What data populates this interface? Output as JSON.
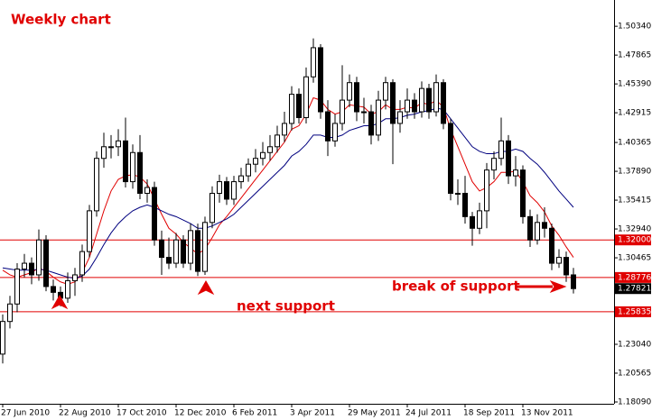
{
  "chart_data": {
    "type": "candlestick",
    "title": "Weekly chart",
    "categories": [
      "27 Jun 2010",
      null,
      null,
      null,
      null,
      null,
      null,
      null,
      "22 Aug 2010",
      null,
      null,
      null,
      null,
      null,
      null,
      null,
      "17 Oct 2010",
      null,
      null,
      null,
      null,
      null,
      null,
      null,
      "12 Dec 2010",
      null,
      null,
      null,
      null,
      null,
      null,
      null,
      "6 Feb 2011",
      null,
      null,
      null,
      null,
      null,
      null,
      null,
      "3 Apr 2011",
      null,
      null,
      null,
      null,
      null,
      null,
      null,
      "29 May 2011",
      null,
      null,
      null,
      null,
      null,
      null,
      null,
      "24 Jul 2011",
      null,
      null,
      null,
      null,
      null,
      null,
      null,
      "18 Sep 2011",
      null,
      null,
      null,
      null,
      null,
      null,
      null,
      "13 Nov 2011",
      null,
      null,
      null,
      null,
      null,
      null,
      null
    ],
    "open": [
      1.222,
      1.25,
      1.265,
      1.295,
      1.3,
      1.29,
      1.32,
      1.28,
      1.275,
      1.27,
      1.285,
      1.29,
      1.31,
      1.345,
      1.39,
      1.4,
      1.4,
      1.405,
      1.37,
      1.395,
      1.36,
      1.365,
      1.32,
      1.305,
      1.3,
      1.32,
      1.3,
      1.328,
      1.293,
      1.335,
      1.36,
      1.37,
      1.355,
      1.37,
      1.375,
      1.385,
      1.39,
      1.395,
      1.4,
      1.41,
      1.42,
      1.445,
      1.425,
      1.46,
      1.485,
      1.43,
      1.405,
      1.42,
      1.44,
      1.455,
      1.43,
      1.43,
      1.41,
      1.44,
      1.455,
      1.42,
      1.43,
      1.44,
      1.43,
      1.45,
      1.43,
      1.455,
      1.42,
      1.36,
      1.36,
      1.34,
      1.33,
      1.345,
      1.38,
      1.39,
      1.405,
      1.375,
      1.38,
      1.34,
      1.32,
      1.335,
      1.33,
      1.3,
      1.305,
      1.29
    ],
    "high": [
      1.256,
      1.272,
      1.3,
      1.308,
      1.305,
      1.329,
      1.324,
      1.286,
      1.28,
      1.292,
      1.296,
      1.316,
      1.35,
      1.396,
      1.412,
      1.41,
      1.415,
      1.425,
      1.402,
      1.41,
      1.372,
      1.37,
      1.328,
      1.322,
      1.326,
      1.324,
      1.334,
      1.334,
      1.34,
      1.366,
      1.376,
      1.374,
      1.375,
      1.382,
      1.39,
      1.398,
      1.404,
      1.41,
      1.418,
      1.43,
      1.452,
      1.45,
      1.468,
      1.493,
      1.488,
      1.44,
      1.428,
      1.47,
      1.462,
      1.46,
      1.442,
      1.436,
      1.448,
      1.46,
      1.458,
      1.44,
      1.45,
      1.446,
      1.456,
      1.454,
      1.462,
      1.458,
      1.424,
      1.372,
      1.375,
      1.344,
      1.352,
      1.386,
      1.396,
      1.425,
      1.41,
      1.392,
      1.384,
      1.346,
      1.342,
      1.348,
      1.334,
      1.312,
      1.31,
      1.296
    ],
    "low": [
      1.214,
      1.244,
      1.258,
      1.288,
      1.282,
      1.285,
      1.276,
      1.268,
      1.263,
      1.266,
      1.272,
      1.284,
      1.305,
      1.34,
      1.382,
      1.39,
      1.392,
      1.365,
      1.364,
      1.355,
      1.352,
      1.315,
      1.29,
      1.295,
      1.296,
      1.296,
      1.294,
      1.289,
      1.29,
      1.33,
      1.352,
      1.35,
      1.35,
      1.364,
      1.37,
      1.378,
      1.384,
      1.388,
      1.395,
      1.404,
      1.414,
      1.42,
      1.42,
      1.455,
      1.424,
      1.392,
      1.4,
      1.414,
      1.434,
      1.422,
      1.42,
      1.402,
      1.405,
      1.432,
      1.385,
      1.412,
      1.424,
      1.424,
      1.425,
      1.424,
      1.426,
      1.415,
      1.354,
      1.35,
      1.334,
      1.315,
      1.325,
      1.33,
      1.372,
      1.384,
      1.368,
      1.366,
      1.334,
      1.314,
      1.316,
      1.322,
      1.294,
      1.296,
      1.284,
      1.274
    ],
    "close": [
      1.25,
      1.265,
      1.295,
      1.3,
      1.29,
      1.32,
      1.28,
      1.275,
      1.27,
      1.285,
      1.29,
      1.31,
      1.345,
      1.39,
      1.4,
      1.4,
      1.405,
      1.37,
      1.395,
      1.36,
      1.365,
      1.32,
      1.305,
      1.3,
      1.32,
      1.3,
      1.328,
      1.293,
      1.335,
      1.36,
      1.37,
      1.355,
      1.37,
      1.375,
      1.385,
      1.39,
      1.395,
      1.4,
      1.41,
      1.42,
      1.445,
      1.425,
      1.46,
      1.485,
      1.43,
      1.405,
      1.42,
      1.44,
      1.455,
      1.43,
      1.43,
      1.41,
      1.44,
      1.455,
      1.42,
      1.43,
      1.44,
      1.43,
      1.45,
      1.43,
      1.455,
      1.42,
      1.36,
      1.36,
      1.34,
      1.33,
      1.345,
      1.38,
      1.39,
      1.405,
      1.375,
      1.38,
      1.34,
      1.32,
      1.335,
      1.33,
      1.3,
      1.305,
      1.29,
      1.27821
    ],
    "moving_averages": [
      {
        "color": "#e00000",
        "values": [
          1.294,
          1.29,
          1.288,
          1.29,
          1.292,
          1.296,
          1.293,
          1.288,
          1.284,
          1.282,
          1.284,
          1.292,
          1.305,
          1.325,
          1.345,
          1.362,
          1.372,
          1.375,
          1.376,
          1.374,
          1.368,
          1.355,
          1.342,
          1.33,
          1.325,
          1.318,
          1.313,
          1.308,
          1.312,
          1.322,
          1.333,
          1.34,
          1.348,
          1.356,
          1.364,
          1.372,
          1.38,
          1.388,
          1.396,
          1.404,
          1.415,
          1.418,
          1.428,
          1.442,
          1.44,
          1.432,
          1.428,
          1.43,
          1.436,
          1.435,
          1.434,
          1.428,
          1.43,
          1.436,
          1.432,
          1.432,
          1.434,
          1.433,
          1.438,
          1.436,
          1.44,
          1.434,
          1.415,
          1.4,
          1.385,
          1.37,
          1.362,
          1.365,
          1.37,
          1.378,
          1.378,
          1.379,
          1.37,
          1.358,
          1.352,
          1.344,
          1.332,
          1.324,
          1.314,
          1.305
        ]
      },
      {
        "color": "#00007f",
        "values": [
          1.296,
          1.295,
          1.294,
          1.294,
          1.294,
          1.295,
          1.294,
          1.292,
          1.29,
          1.288,
          1.287,
          1.289,
          1.295,
          1.305,
          1.316,
          1.326,
          1.334,
          1.34,
          1.345,
          1.348,
          1.35,
          1.348,
          1.345,
          1.342,
          1.34,
          1.337,
          1.334,
          1.33,
          1.33,
          1.332,
          1.335,
          1.338,
          1.342,
          1.348,
          1.354,
          1.36,
          1.366,
          1.372,
          1.378,
          1.384,
          1.392,
          1.396,
          1.402,
          1.41,
          1.41,
          1.408,
          1.408,
          1.41,
          1.414,
          1.416,
          1.418,
          1.418,
          1.42,
          1.424,
          1.424,
          1.425,
          1.427,
          1.428,
          1.43,
          1.431,
          1.433,
          1.432,
          1.424,
          1.416,
          1.408,
          1.4,
          1.396,
          1.394,
          1.394,
          1.396,
          1.396,
          1.398,
          1.396,
          1.39,
          1.385,
          1.378,
          1.37,
          1.362,
          1.355,
          1.348
        ]
      }
    ],
    "ylim": [
      1.17935,
      1.52595
    ],
    "yticks": [
      {
        "value": 1.5034,
        "label": "1.50340"
      },
      {
        "value": 1.47865,
        "label": "1.47865"
      },
      {
        "value": 1.4539,
        "label": "1.45390"
      },
      {
        "value": 1.42915,
        "label": "1.42915"
      },
      {
        "value": 1.40365,
        "label": "1.40365"
      },
      {
        "value": 1.3789,
        "label": "1.37890"
      },
      {
        "value": 1.35415,
        "label": "1.35415"
      },
      {
        "value": 1.3294,
        "label": "1.32940"
      },
      {
        "value": 1.30465,
        "label": "1.30465"
      },
      {
        "value": 1.2304,
        "label": "1.23040"
      },
      {
        "value": 1.20565,
        "label": "1.20565"
      },
      {
        "value": 1.1809,
        "label": "1.18090"
      }
    ],
    "levels": [
      {
        "value": 1.32,
        "label": "1.32000",
        "color": "#e00000",
        "line": true
      },
      {
        "value": 1.28776,
        "label": "1.28776",
        "color": "#e00000",
        "line": true
      },
      {
        "value": 1.27821,
        "label": "1.27821",
        "color": "#000000",
        "line": false
      },
      {
        "value": 1.25835,
        "label": "1.25835",
        "color": "#e00000",
        "line": true
      }
    ],
    "annotations": {
      "break": "break of support",
      "next": "next support"
    }
  }
}
